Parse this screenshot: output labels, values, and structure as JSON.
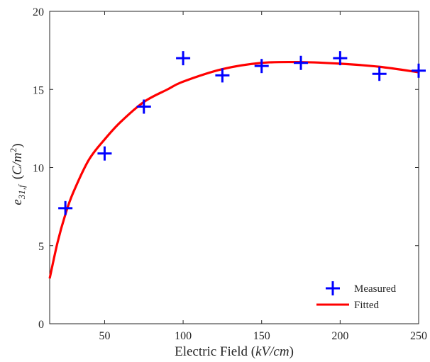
{
  "chart_data": {
    "type": "scatter",
    "xlabel": {
      "prefix": "Electric Field (",
      "var": "kV/cm",
      "suffix": ")"
    },
    "ylabel": {
      "prefix": "e",
      "sub": "31,f",
      "paren_open": "(",
      "var": "C/m",
      "sup": "2",
      "paren_close": ")"
    },
    "xlim": [
      15,
      250
    ],
    "ylim": [
      0,
      20
    ],
    "xticks": [
      50,
      100,
      150,
      200,
      250
    ],
    "yticks": [
      0,
      5,
      10,
      15,
      20
    ],
    "grid": false,
    "legend_position": "bottom-right",
    "series": [
      {
        "name": "Measured",
        "kind": "marker-plus",
        "color": "#0000ff",
        "x": [
          25,
          50,
          75,
          100,
          125,
          150,
          175,
          200,
          225,
          250
        ],
        "y": [
          7.4,
          10.9,
          13.9,
          17.0,
          15.9,
          16.5,
          16.7,
          17.0,
          16.0,
          16.2
        ]
      },
      {
        "name": "Fitted",
        "kind": "line",
        "color": "#ff0000",
        "x": [
          15,
          20,
          25,
          30,
          40,
          50,
          60,
          75,
          90,
          100,
          125,
          150,
          175,
          200,
          225,
          250
        ],
        "y": [
          2.9,
          5.2,
          7.0,
          8.4,
          10.5,
          11.8,
          12.9,
          14.2,
          15.0,
          15.5,
          16.3,
          16.7,
          16.75,
          16.65,
          16.45,
          16.1
        ]
      }
    ]
  }
}
